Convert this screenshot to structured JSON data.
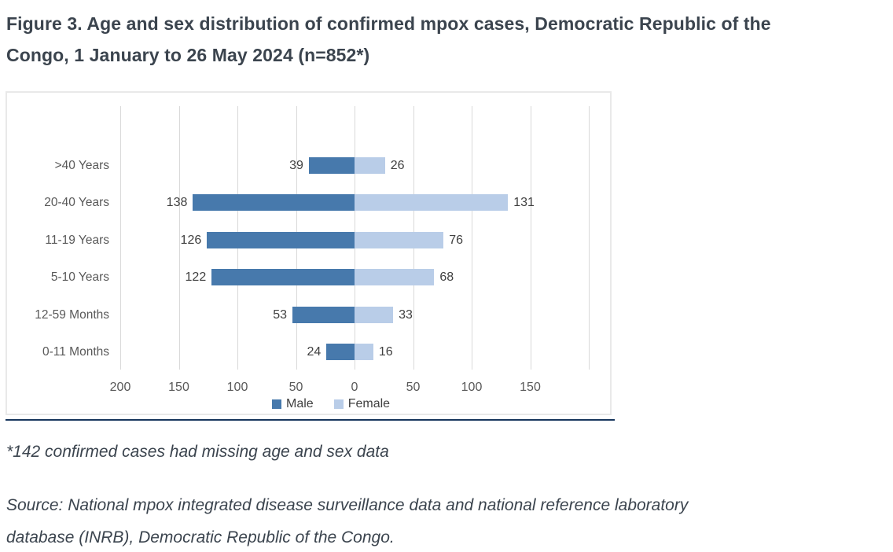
{
  "header": {
    "title_line1": "Figure 3. Age and sex distribution of confirmed mpox cases, Democratic Republic of the",
    "title_line2": "Congo, 1 January to 26 May 2024 (n=852*)"
  },
  "notes": {
    "footnote": "*142 confirmed cases had missing age and sex data",
    "source_line1": "Source: National mpox integrated disease surveillance data and national reference laboratory",
    "source_line2": "database (INRB), Democratic Republic of the Congo."
  },
  "chart_data": {
    "type": "bar",
    "variant": "horizontal-diverging-pyramid",
    "title": "Age and sex distribution of confirmed mpox cases, DRC, 1 January to 26 May 2024 (n=852)",
    "categories_top_to_bottom": [
      ">40 Years",
      "20-40 Years",
      "11-19 Years",
      "5-10 Years",
      "12-59 Months",
      "0-11 Months"
    ],
    "series": [
      {
        "name": "Male",
        "side": "left",
        "color": "#4779AC",
        "values": [
          39,
          138,
          126,
          122,
          53,
          24
        ]
      },
      {
        "name": "Female",
        "side": "right",
        "color": "#B9CDE8",
        "values": [
          26,
          131,
          76,
          68,
          33,
          16
        ]
      }
    ],
    "x_axis": {
      "tick_values": [
        -200,
        -150,
        -100,
        -50,
        0,
        50,
        100,
        150
      ],
      "tick_labels": [
        "200",
        "150",
        "100",
        "50",
        "0",
        "50",
        "100",
        "150"
      ],
      "grid_values": [
        -200,
        -150,
        -100,
        -50,
        0,
        50,
        100,
        150,
        200
      ],
      "range": [
        -225,
        225
      ],
      "gridlines": true
    },
    "legend": {
      "position": "bottom-center",
      "entries": [
        "Male",
        "Female"
      ]
    },
    "value_labels": "outside bar ends"
  },
  "colors": {
    "male_bar": "#4779AC",
    "female_bar": "#B9CDE8",
    "gridline": "#D9D9D9",
    "chart_border": "#E9E9E9",
    "divider_line": "#17365D",
    "title_text": "#3B444E",
    "body_text": "#3B444E",
    "value_label_text": "#404040",
    "axis_text": "#595959"
  }
}
